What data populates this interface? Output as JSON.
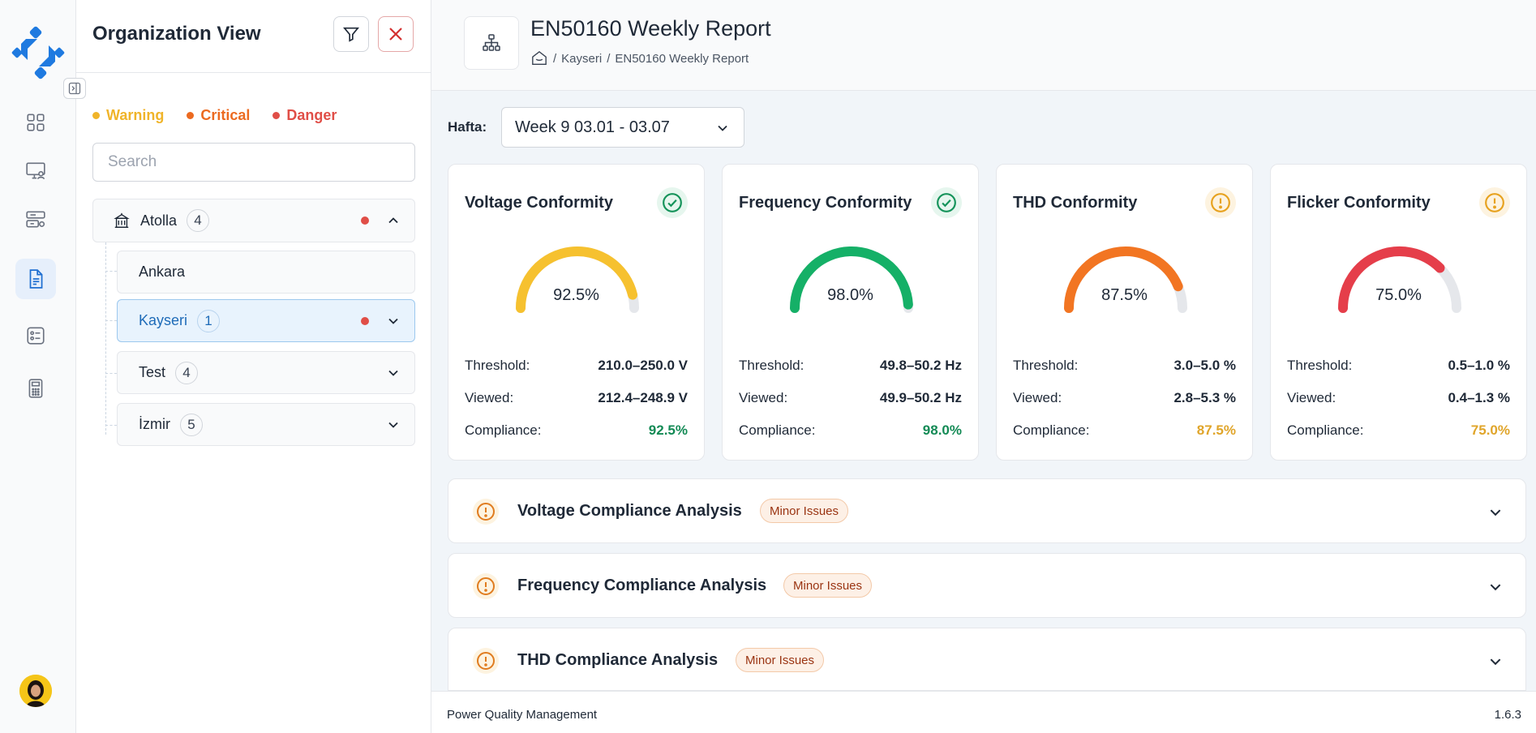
{
  "sidebar": {
    "nav_icons": [
      "dashboard-icon",
      "monitor-user-icon",
      "server-settings-icon",
      "report-document-icon",
      "list-card-icon",
      "calculator-icon"
    ],
    "active_nav": "report-document-icon"
  },
  "org_panel": {
    "title": "Organization View",
    "legend": [
      {
        "label": "Warning",
        "color": "#f0b429"
      },
      {
        "label": "Critical",
        "color": "#ec6a20"
      },
      {
        "label": "Danger",
        "color": "#e04e47"
      }
    ],
    "search_placeholder": "Search",
    "root": {
      "label": "Atolla",
      "count": "4"
    },
    "children": [
      {
        "label": "Ankara",
        "count": ""
      },
      {
        "label": "Kayseri",
        "count": "1"
      },
      {
        "label": "Test",
        "count": "4"
      },
      {
        "label": "İzmir",
        "count": "5"
      }
    ]
  },
  "header": {
    "title": "EN50160 Weekly Report",
    "breadcrumb": [
      "Kayseri",
      "EN50160 Weekly Report"
    ]
  },
  "week": {
    "label": "Hafta:",
    "selected": "Week 9 03.01 - 03.07"
  },
  "labels": {
    "threshold": "Threshold:",
    "viewed": "Viewed:",
    "compliance": "Compliance:"
  },
  "cards": [
    {
      "title": "Voltage Conformity",
      "status": "ok",
      "value": "92.5%",
      "percent": 92.5,
      "gauge_color": "#f6c12f",
      "threshold": "210.0–250.0 V",
      "viewed": "212.4–248.9 V",
      "compliance": "92.5%",
      "compliance_color": "#138a55"
    },
    {
      "title": "Frequency Conformity",
      "status": "ok",
      "value": "98.0%",
      "percent": 98.0,
      "gauge_color": "#15b067",
      "threshold": "49.8–50.2 Hz",
      "viewed": "49.9–50.2 Hz",
      "compliance": "98.0%",
      "compliance_color": "#138a55"
    },
    {
      "title": "THD Conformity",
      "status": "warn",
      "value": "87.5%",
      "percent": 87.5,
      "gauge_color": "#f27522",
      "threshold": "3.0–5.0 %",
      "viewed": "2.8–5.3 %",
      "compliance": "87.5%",
      "compliance_color": "#e0a52a"
    },
    {
      "title": "Flicker Conformity",
      "status": "warn",
      "value": "75.0%",
      "percent": 75.0,
      "gauge_color": "#e53e4a",
      "threshold": "0.5–1.0 %",
      "viewed": "0.4–1.3 %",
      "compliance": "75.0%",
      "compliance_color": "#e0a52a"
    }
  ],
  "sections": [
    {
      "title": "Voltage Compliance Analysis",
      "badge": "Minor Issues"
    },
    {
      "title": "Frequency Compliance Analysis",
      "badge": "Minor Issues"
    },
    {
      "title": "THD Compliance Analysis",
      "badge": "Minor Issues"
    }
  ],
  "footer": {
    "app_name": "Power Quality Management",
    "version": "1.6.3"
  }
}
